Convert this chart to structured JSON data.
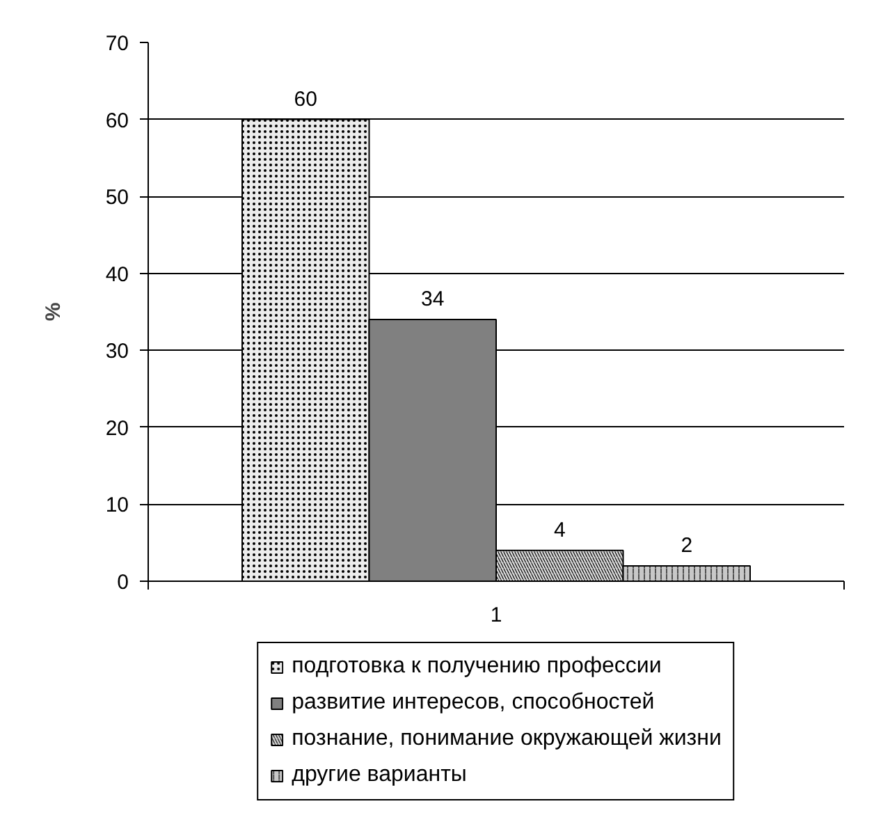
{
  "chart_data": {
    "type": "bar",
    "ylabel": "%",
    "categories": [
      "1"
    ],
    "series": [
      {
        "name": "подготовка к получению профессии",
        "color": "#ececec",
        "values": [
          60
        ]
      },
      {
        "name": "развитие интересов, способностей",
        "color": "#808080",
        "values": [
          34
        ]
      },
      {
        "name": "познание, понимание окружающей жизни",
        "color": "#dadada",
        "values": [
          4
        ]
      },
      {
        "name": "другие варианты",
        "color": "#c8c8c8",
        "values": [
          2
        ]
      }
    ],
    "ylim": [
      0,
      70
    ],
    "yticks": [
      0,
      10,
      20,
      30,
      40,
      50,
      60,
      70
    ],
    "grid": "y",
    "legend": "bottom",
    "data_labels": true
  }
}
